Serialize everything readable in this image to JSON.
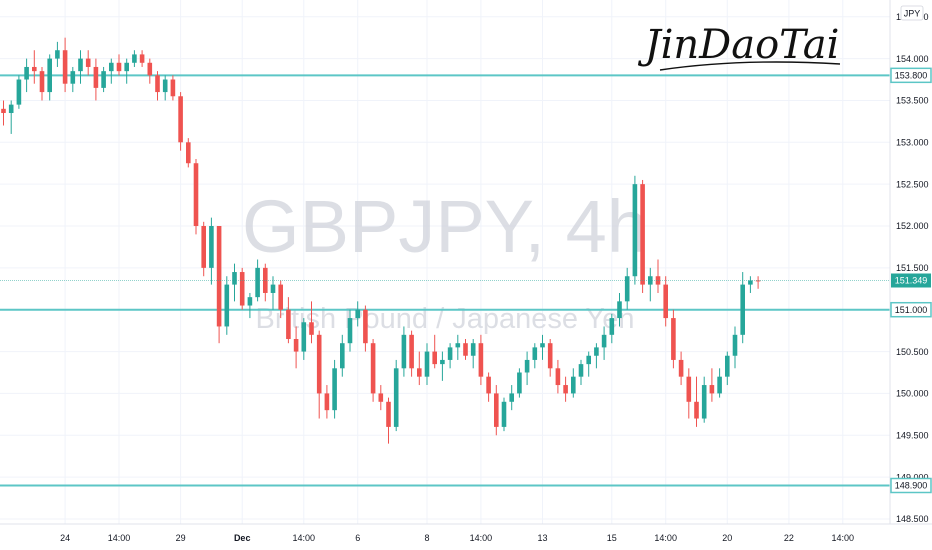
{
  "chart_data": {
    "type": "candlestick",
    "title": "GBPJPY, 4h",
    "subtitle": "British Pound / Japanese Yen",
    "signature": "JinDaoTai",
    "currency": "JPY",
    "ylim": [
      148.44,
      154.7
    ],
    "y_ticks": [
      "154.500",
      "154.000",
      "153.500",
      "153.000",
      "152.500",
      "152.000",
      "151.500",
      "151.000",
      "150.500",
      "150.000",
      "149.500",
      "149.000",
      "148.500"
    ],
    "x_ticks": [
      {
        "label": "24",
        "bar": 8
      },
      {
        "label": "14:00",
        "bar": 15
      },
      {
        "label": "29",
        "bar": 23
      },
      {
        "label": "Dec",
        "bar": 31
      },
      {
        "label": "14:00",
        "bar": 39
      },
      {
        "label": "6",
        "bar": 46
      },
      {
        "label": "8",
        "bar": 55
      },
      {
        "label": "14:00",
        "bar": 62
      },
      {
        "label": "13",
        "bar": 70
      },
      {
        "label": "15",
        "bar": 79
      },
      {
        "label": "14:00",
        "bar": 86
      },
      {
        "label": "20",
        "bar": 94
      },
      {
        "label": "22",
        "bar": 102
      },
      {
        "label": "14:00",
        "bar": 109
      }
    ],
    "levels": [
      {
        "value": 153.8,
        "label": "153.800"
      },
      {
        "value": 151.0,
        "label": "151.000"
      },
      {
        "value": 148.9,
        "label": "148.900"
      }
    ],
    "last_price": {
      "value": 151.349,
      "label": "151.349"
    },
    "colors": {
      "up": "#26a69a",
      "down": "#ef5350",
      "level": "#5cc6c6",
      "grid": "#f0f3fa",
      "text": "#131722"
    },
    "candles": [
      [
        153.4,
        153.5,
        153.2,
        153.35
      ],
      [
        153.35,
        153.5,
        153.1,
        153.45
      ],
      [
        153.45,
        153.8,
        153.4,
        153.75
      ],
      [
        153.75,
        154.0,
        153.6,
        153.9
      ],
      [
        153.9,
        154.1,
        153.7,
        153.85
      ],
      [
        153.85,
        153.9,
        153.5,
        153.6
      ],
      [
        153.6,
        154.05,
        153.5,
        154.0
      ],
      [
        154.0,
        154.2,
        153.9,
        154.1
      ],
      [
        154.1,
        154.25,
        153.6,
        153.7
      ],
      [
        153.7,
        153.9,
        153.6,
        153.85
      ],
      [
        153.85,
        154.1,
        153.7,
        154.0
      ],
      [
        154.0,
        154.1,
        153.8,
        153.9
      ],
      [
        153.9,
        154.0,
        153.5,
        153.65
      ],
      [
        153.65,
        153.9,
        153.6,
        153.85
      ],
      [
        153.85,
        154.0,
        153.7,
        153.95
      ],
      [
        153.95,
        154.05,
        153.8,
        153.85
      ],
      [
        153.85,
        154.0,
        153.7,
        153.95
      ],
      [
        153.95,
        154.1,
        153.9,
        154.05
      ],
      [
        154.05,
        154.1,
        153.9,
        153.95
      ],
      [
        153.95,
        154.0,
        153.7,
        153.8
      ],
      [
        153.8,
        153.85,
        153.5,
        153.6
      ],
      [
        153.6,
        153.8,
        153.5,
        153.75
      ],
      [
        153.75,
        153.8,
        153.5,
        153.55
      ],
      [
        153.55,
        153.6,
        152.9,
        153.0
      ],
      [
        153.0,
        153.05,
        152.7,
        152.75
      ],
      [
        152.75,
        152.8,
        151.9,
        152.0
      ],
      [
        152.0,
        152.05,
        151.4,
        151.5
      ],
      [
        151.5,
        152.1,
        151.3,
        152.0
      ],
      [
        152.0,
        152.0,
        150.6,
        150.8
      ],
      [
        150.8,
        151.4,
        150.7,
        151.3
      ],
      [
        151.3,
        151.55,
        151.1,
        151.45
      ],
      [
        151.45,
        151.5,
        151.0,
        151.05
      ],
      [
        151.05,
        151.2,
        150.9,
        151.15
      ],
      [
        151.15,
        151.6,
        151.1,
        151.5
      ],
      [
        151.5,
        151.55,
        151.1,
        151.2
      ],
      [
        151.2,
        151.4,
        151.0,
        151.3
      ],
      [
        151.3,
        151.35,
        150.9,
        151.0
      ],
      [
        151.0,
        151.15,
        150.6,
        150.65
      ],
      [
        150.65,
        150.8,
        150.3,
        150.5
      ],
      [
        150.5,
        150.9,
        150.4,
        150.85
      ],
      [
        150.85,
        151.1,
        150.6,
        150.7
      ],
      [
        150.7,
        150.75,
        149.7,
        150.0
      ],
      [
        150.0,
        150.1,
        149.7,
        149.8
      ],
      [
        149.8,
        150.4,
        149.7,
        150.3
      ],
      [
        150.3,
        150.7,
        150.2,
        150.6
      ],
      [
        150.6,
        151.0,
        150.5,
        150.9
      ],
      [
        150.9,
        151.1,
        150.8,
        151.0
      ],
      [
        151.0,
        151.05,
        150.5,
        150.6
      ],
      [
        150.6,
        150.65,
        149.9,
        150.0
      ],
      [
        150.0,
        150.1,
        149.8,
        149.9
      ],
      [
        149.9,
        149.95,
        149.4,
        149.6
      ],
      [
        149.6,
        150.4,
        149.55,
        150.3
      ],
      [
        150.3,
        150.8,
        150.2,
        150.7
      ],
      [
        150.7,
        150.75,
        150.2,
        150.3
      ],
      [
        150.3,
        150.5,
        150.1,
        150.2
      ],
      [
        150.2,
        150.6,
        150.1,
        150.5
      ],
      [
        150.5,
        150.7,
        150.3,
        150.35
      ],
      [
        150.35,
        150.5,
        150.15,
        150.4
      ],
      [
        150.4,
        150.6,
        150.3,
        150.55
      ],
      [
        150.55,
        150.7,
        150.4,
        150.6
      ],
      [
        150.6,
        150.65,
        150.4,
        150.45
      ],
      [
        150.45,
        150.65,
        150.3,
        150.6
      ],
      [
        150.6,
        150.7,
        150.1,
        150.2
      ],
      [
        150.2,
        150.25,
        149.9,
        150.0
      ],
      [
        150.0,
        150.1,
        149.5,
        149.6
      ],
      [
        149.6,
        149.95,
        149.55,
        149.9
      ],
      [
        149.9,
        150.1,
        149.8,
        150.0
      ],
      [
        150.0,
        150.3,
        149.95,
        150.25
      ],
      [
        150.25,
        150.5,
        150.1,
        150.4
      ],
      [
        150.4,
        150.6,
        150.3,
        150.55
      ],
      [
        150.55,
        150.7,
        150.4,
        150.6
      ],
      [
        150.6,
        150.65,
        150.2,
        150.3
      ],
      [
        150.3,
        150.4,
        150.0,
        150.1
      ],
      [
        150.1,
        150.2,
        149.9,
        150.0
      ],
      [
        150.0,
        150.3,
        149.95,
        150.2
      ],
      [
        150.2,
        150.4,
        150.1,
        150.35
      ],
      [
        150.35,
        150.5,
        150.2,
        150.45
      ],
      [
        150.45,
        150.6,
        150.3,
        150.55
      ],
      [
        150.55,
        150.8,
        150.4,
        150.7
      ],
      [
        150.7,
        150.95,
        150.6,
        150.9
      ],
      [
        150.9,
        151.2,
        150.8,
        151.1
      ],
      [
        151.1,
        151.5,
        151.0,
        151.4
      ],
      [
        151.4,
        152.6,
        151.3,
        152.5
      ],
      [
        152.5,
        152.55,
        151.2,
        151.3
      ],
      [
        151.3,
        151.5,
        151.1,
        151.4
      ],
      [
        151.4,
        151.6,
        151.2,
        151.3
      ],
      [
        151.3,
        151.4,
        150.8,
        150.9
      ],
      [
        150.9,
        151.0,
        150.3,
        150.4
      ],
      [
        150.4,
        150.5,
        150.1,
        150.2
      ],
      [
        150.2,
        150.3,
        149.7,
        149.9
      ],
      [
        149.9,
        150.2,
        149.6,
        149.7
      ],
      [
        149.7,
        150.2,
        149.65,
        150.1
      ],
      [
        150.1,
        150.3,
        149.9,
        150.0
      ],
      [
        150.0,
        150.3,
        149.95,
        150.2
      ],
      [
        150.2,
        150.5,
        150.1,
        150.45
      ],
      [
        150.45,
        150.8,
        150.3,
        150.7
      ],
      [
        150.7,
        151.45,
        150.6,
        151.3
      ],
      [
        151.3,
        151.4,
        151.2,
        151.35
      ],
      [
        151.35,
        151.4,
        151.25,
        151.349
      ]
    ]
  }
}
